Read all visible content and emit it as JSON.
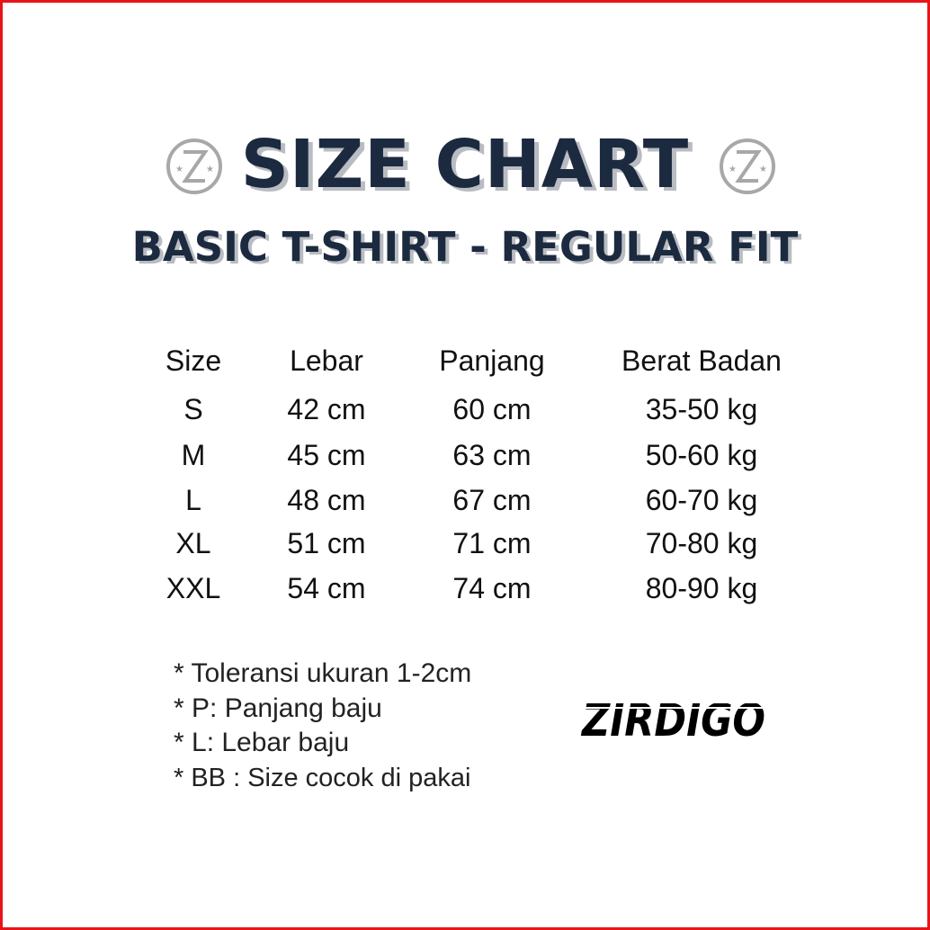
{
  "header": {
    "title": "SIZE CHART",
    "subtitle": "BASIC T-SHIRT - REGULAR FIT"
  },
  "table": {
    "columns": [
      "Size",
      "Lebar",
      "Panjang",
      "Berat Badan"
    ],
    "rows": [
      [
        "S",
        "42 cm",
        "60 cm",
        "35-50 kg"
      ],
      [
        "M",
        "45 cm",
        "63 cm",
        "50-60 kg"
      ],
      [
        "L",
        "48 cm",
        "67 cm",
        "60-70 kg"
      ],
      [
        "XL",
        "51 cm",
        "71 cm",
        "70-80 kg"
      ],
      [
        "XXL",
        "54 cm",
        "74 cm",
        "80-90 kg"
      ]
    ]
  },
  "notes": [
    "* Toleransi ukuran 1-2cm",
    "* P: Panjang baju",
    "* L: Lebar baju",
    "* BB : Size cocok di pakai"
  ],
  "brand": {
    "logo_text": "ZIRDIGO",
    "emblem_icon": "z-circle-emblem"
  },
  "colors": {
    "title": "#1c2a3f",
    "border": "#e8141a"
  }
}
